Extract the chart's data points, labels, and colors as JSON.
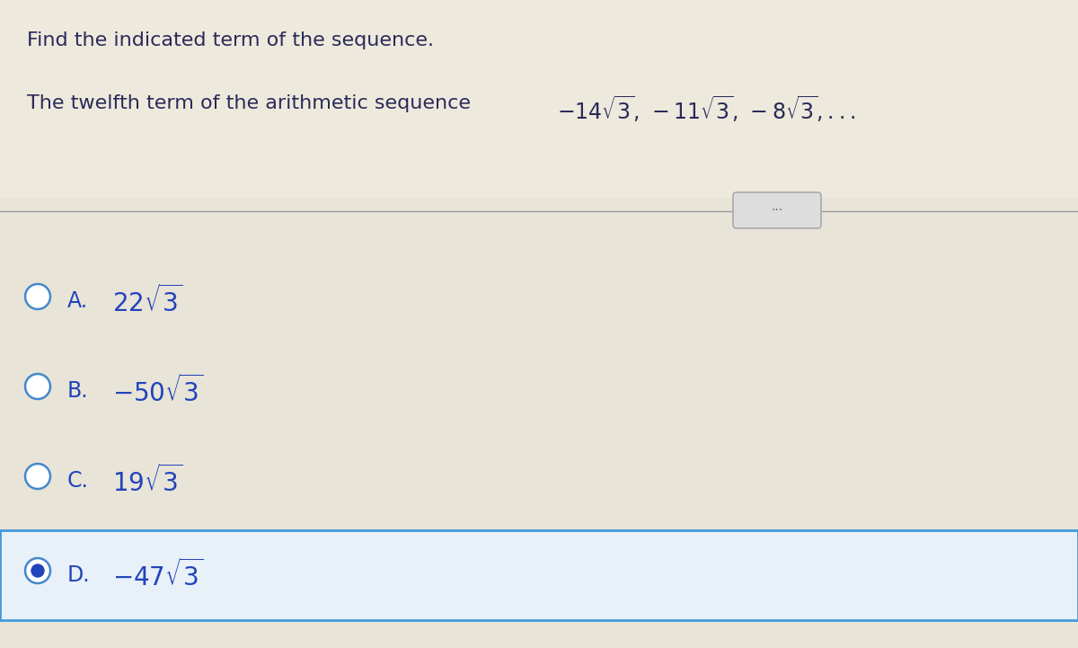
{
  "background_color": "#e8e4d8",
  "header_bg": "#ede9dc",
  "title_text": "Find the indicated term of the sequence.",
  "subtitle_plain": "The twelfth term of the arithmetic sequence",
  "subtitle_math": "$-14\\sqrt{3},\\,-11\\sqrt{3},\\,-8\\sqrt{3},...$",
  "options": [
    {
      "label": "A.",
      "math": "$22\\sqrt{3}$",
      "selected": false
    },
    {
      "label": "B.",
      "math": "$-50\\sqrt{3}$",
      "selected": false
    },
    {
      "label": "C.",
      "math": "$19\\sqrt{3}$",
      "selected": false
    },
    {
      "label": "D.",
      "math": "$-47\\sqrt{3}$",
      "selected": true
    }
  ],
  "text_color": "#2a2a5a",
  "option_color": "#2244bb",
  "circle_color": "#4488cc",
  "selected_fill": "#2244bb",
  "selected_box_edge": "#4499dd",
  "selected_box_face": "#e8f0f8",
  "sep_color": "#999999",
  "dots_face": "#dddddd",
  "dots_edge": "#aaaaaa",
  "figsize": [
    12.0,
    7.21
  ],
  "dpi": 100
}
